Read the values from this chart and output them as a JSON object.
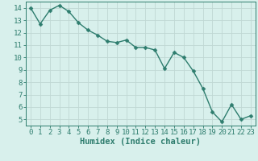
{
  "x": [
    0,
    1,
    2,
    3,
    4,
    5,
    6,
    7,
    8,
    9,
    10,
    11,
    12,
    13,
    14,
    15,
    16,
    17,
    18,
    19,
    20,
    21,
    22,
    23
  ],
  "y": [
    14.0,
    12.7,
    13.8,
    14.2,
    13.7,
    12.8,
    12.2,
    11.8,
    11.3,
    11.2,
    11.4,
    10.8,
    10.8,
    10.6,
    9.1,
    10.4,
    10.0,
    8.9,
    7.5,
    5.6,
    4.8,
    6.2,
    5.0,
    5.3
  ],
  "line_color": "#2e7d6e",
  "marker": "D",
  "marker_size": 2.5,
  "line_width": 1.0,
  "bg_color": "#d8f0ec",
  "grid_color": "#c0d8d4",
  "xlabel": "Humidex (Indice chaleur)",
  "xlabel_fontsize": 7.5,
  "tick_fontsize": 6.5,
  "xlim": [
    -0.5,
    23.5
  ],
  "ylim": [
    4.5,
    14.5
  ],
  "yticks": [
    5,
    6,
    7,
    8,
    9,
    10,
    11,
    12,
    13,
    14
  ],
  "xticks": [
    0,
    1,
    2,
    3,
    4,
    5,
    6,
    7,
    8,
    9,
    10,
    11,
    12,
    13,
    14,
    15,
    16,
    17,
    18,
    19,
    20,
    21,
    22,
    23
  ]
}
